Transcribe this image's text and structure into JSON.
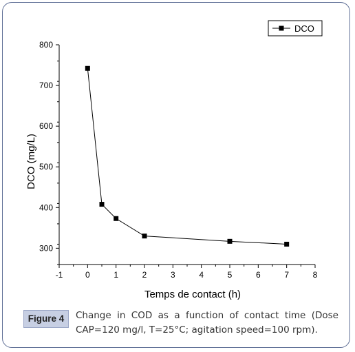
{
  "chart_data": {
    "type": "line",
    "xlabel": "Temps de contact (h)",
    "ylabel": "DCO (mg/L)",
    "xlim": [
      -1,
      8
    ],
    "ylim": [
      260,
      800
    ],
    "xticks": [
      "-1",
      "0",
      "1",
      "2",
      "3",
      "4",
      "5",
      "6",
      "7",
      "8"
    ],
    "yticks": [
      "300",
      "400",
      "500",
      "600",
      "700",
      "800"
    ],
    "series": [
      {
        "name": "DCO",
        "color": "#000000",
        "marker": "square",
        "x": [
          0,
          0.5,
          1,
          2,
          5,
          7
        ],
        "y": [
          742,
          408,
          373,
          330,
          317,
          310
        ]
      }
    ],
    "legend_position": "top-right",
    "grid": false
  },
  "caption": {
    "label": "Figure 4",
    "text": "Change in COD as a function of contact time (Dose CAP=120 mg/l, T=25°C; agitation speed=100 rpm)."
  },
  "colors": {
    "frame_border": "#5f6f96",
    "label_bg": "#c7cfe3"
  }
}
